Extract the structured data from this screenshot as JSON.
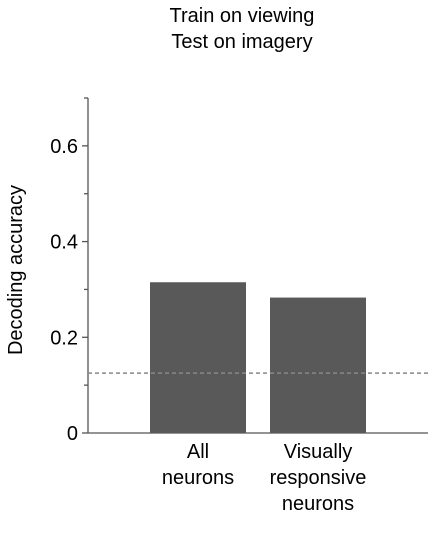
{
  "chart_data": {
    "type": "bar",
    "title": "Train on viewing\nTest on imagery",
    "ylabel": "Decoding accuracy",
    "categories": [
      "All\nneurons",
      "Visually\nresponsive\nneurons"
    ],
    "values": [
      0.315,
      0.283
    ],
    "color": "#595959",
    "ylim": [
      0,
      0.7
    ],
    "yticks": [
      0,
      0.2,
      0.4,
      0.6
    ],
    "yminorticks": [
      0.1,
      0.3,
      0.5,
      0.7
    ],
    "chance_level": 0.125,
    "grid": false
  }
}
